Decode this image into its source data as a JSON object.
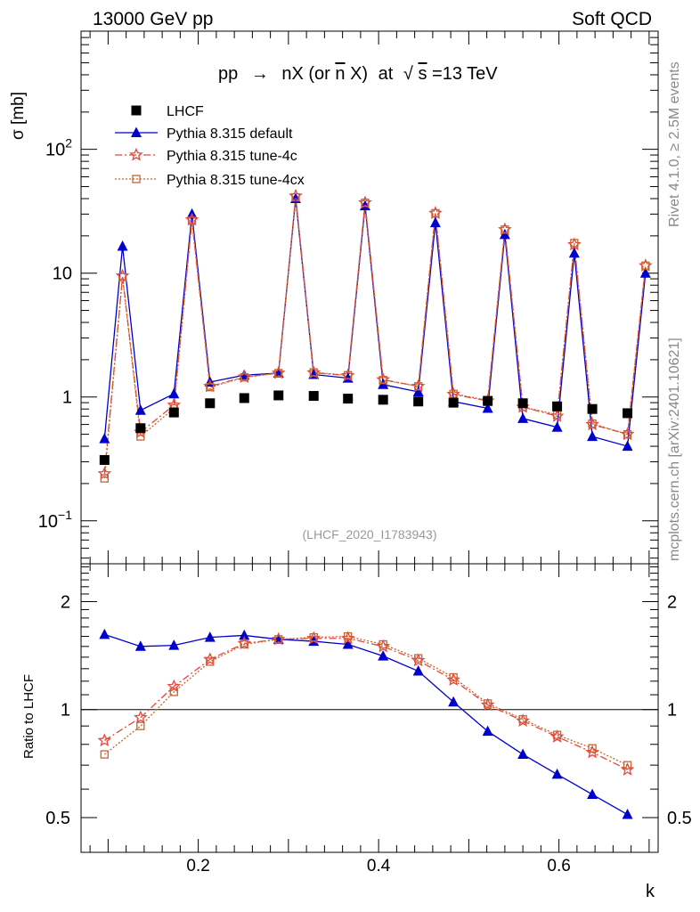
{
  "header": {
    "left": "13000 GeV pp",
    "right": "Soft QCD",
    "side_rivet": "Rivet 4.1.0, ≥ 2.5M events",
    "side_site": "mcplots.cern.ch [arXiv:2401.10621]"
  },
  "colors": {
    "data": "#000000",
    "default": "#0000cc",
    "tune4c": "#e8463c",
    "tune4cx": "#c8642d",
    "ratio_line": "#000000"
  },
  "chart_data": [
    {
      "type": "scatter",
      "title": "pp → nX (or n̄X) at √s=13 TeV",
      "title_parts": {
        "pp": "pp",
        "arrow": "→",
        "mid": "nX (or ",
        "nbar": "n",
        "after": "X)",
        "at": "at",
        "sqrt_s": "s",
        "energy": "=13 TeV"
      },
      "ylabel": "σ [mb]",
      "xlabel": "",
      "yscale": "log",
      "ylim": [
        0.045,
        900
      ],
      "xlim": [
        0.07,
        0.71
      ],
      "yticks": [
        0.1,
        1,
        10,
        100
      ],
      "ytick_labels": [
        {
          "base": "10",
          "exp": "−1"
        },
        {
          "base": "1",
          "exp": ""
        },
        {
          "base": "10",
          "exp": ""
        },
        {
          "base": "10",
          "exp": "2"
        }
      ],
      "analysis_label": "(LHCF_2020_I1783943)",
      "legend": [
        "LHCF",
        "Pythia 8.315 default",
        "Pythia 8.315 tune-4c",
        "Pythia 8.315 tune-4cx"
      ],
      "legend_position": "top-left",
      "data_series": {
        "name": "LHCF",
        "x": [
          0.096,
          0.136,
          0.173,
          0.213,
          0.251,
          0.289,
          0.328,
          0.366,
          0.405,
          0.444,
          0.483,
          0.521,
          0.56,
          0.598,
          0.637,
          0.676
        ],
        "y": [
          0.31,
          0.56,
          0.75,
          0.89,
          0.98,
          1.03,
          1.02,
          0.97,
          0.95,
          0.92,
          0.9,
          0.93,
          0.89,
          0.84,
          0.8,
          0.74
        ]
      },
      "series": [
        {
          "name": "Pythia 8.315 default",
          "x": [
            0.096,
            0.116,
            0.136,
            0.173,
            0.193,
            0.213,
            0.251,
            0.289,
            0.308,
            0.328,
            0.366,
            0.385,
            0.405,
            0.444,
            0.463,
            0.483,
            0.521,
            0.54,
            0.56,
            0.598,
            0.617,
            0.637,
            0.676,
            0.696
          ],
          "y": [
            0.46,
            16.5,
            0.78,
            1.06,
            30,
            1.32,
            1.5,
            1.56,
            40,
            1.52,
            1.42,
            35,
            1.26,
            1.1,
            25.5,
            0.92,
            0.81,
            20.5,
            0.67,
            0.57,
            14.5,
            0.48,
            0.4,
            10
          ]
        },
        {
          "name": "Pythia 8.315 tune-4c",
          "x": [
            0.096,
            0.116,
            0.136,
            0.173,
            0.193,
            0.213,
            0.251,
            0.289,
            0.308,
            0.328,
            0.366,
            0.385,
            0.405,
            0.444,
            0.463,
            0.483,
            0.521,
            0.54,
            0.56,
            0.598,
            0.617,
            0.637,
            0.676,
            0.696
          ],
          "y": [
            0.24,
            9.5,
            0.52,
            0.86,
            27,
            1.22,
            1.45,
            1.56,
            42,
            1.57,
            1.49,
            37,
            1.38,
            1.22,
            30.5,
            1.05,
            0.93,
            22.5,
            0.83,
            0.7,
            17,
            0.6,
            0.5,
            11.5
          ]
        },
        {
          "name": "Pythia 8.315 tune-4cx",
          "x": [
            0.096,
            0.116,
            0.136,
            0.173,
            0.193,
            0.213,
            0.251,
            0.289,
            0.308,
            0.328,
            0.366,
            0.385,
            0.405,
            0.444,
            0.463,
            0.483,
            0.521,
            0.54,
            0.56,
            0.598,
            0.617,
            0.637,
            0.676,
            0.696
          ],
          "y": [
            0.22,
            9.3,
            0.48,
            0.81,
            26.5,
            1.2,
            1.44,
            1.56,
            41,
            1.58,
            1.5,
            37,
            1.37,
            1.22,
            30.5,
            1.06,
            0.94,
            22.5,
            0.83,
            0.72,
            17.5,
            0.61,
            0.5,
            11.5
          ]
        }
      ]
    },
    {
      "type": "line",
      "title": "",
      "ylabel": "Ratio to LHCF",
      "xlabel": "k",
      "yscale": "log",
      "ylim": [
        0.4,
        2.55
      ],
      "xlim": [
        0.07,
        0.71
      ],
      "yticks": [
        0.5,
        1,
        2
      ],
      "ytick_labels": [
        "0.5",
        "1",
        "2"
      ],
      "xticks": [
        0.2,
        0.4,
        0.6
      ],
      "xtick_labels": [
        "0.2",
        "0.4",
        "0.6"
      ],
      "reference_line": 1,
      "x": [
        0.096,
        0.136,
        0.173,
        0.213,
        0.251,
        0.289,
        0.328,
        0.366,
        0.405,
        0.444,
        0.483,
        0.521,
        0.56,
        0.598,
        0.637,
        0.676
      ],
      "series": [
        {
          "name": "Pythia 8.315 default",
          "values": [
            1.62,
            1.5,
            1.51,
            1.59,
            1.61,
            1.57,
            1.55,
            1.52,
            1.41,
            1.28,
            1.05,
            0.87,
            0.75,
            0.66,
            0.58,
            0.51
          ]
        },
        {
          "name": "Pythia 8.315 tune-4c",
          "values": [
            0.82,
            0.95,
            1.16,
            1.38,
            1.53,
            1.57,
            1.58,
            1.58,
            1.5,
            1.37,
            1.21,
            1.03,
            0.93,
            0.84,
            0.76,
            0.68
          ]
        },
        {
          "name": "Pythia 8.315 tune-4cx",
          "values": [
            0.75,
            0.9,
            1.12,
            1.36,
            1.52,
            1.57,
            1.59,
            1.6,
            1.52,
            1.39,
            1.23,
            1.04,
            0.94,
            0.85,
            0.78,
            0.7
          ]
        }
      ]
    }
  ]
}
